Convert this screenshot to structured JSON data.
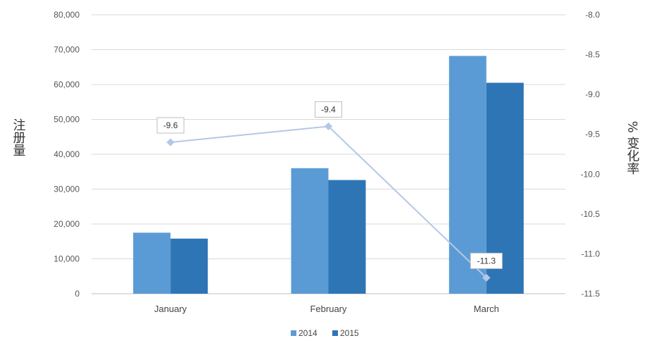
{
  "chart_data": {
    "type": "bar",
    "categories": [
      "January",
      "February",
      "March"
    ],
    "series": [
      {
        "name": "2014",
        "type": "bar",
        "axis": "left",
        "color": "#5b9bd5",
        "values": [
          17500,
          36000,
          68200
        ]
      },
      {
        "name": "2015",
        "type": "bar",
        "axis": "left",
        "color": "#2e75b6",
        "values": [
          15800,
          32600,
          60500
        ]
      },
      {
        "type": "line",
        "axis": "right",
        "color": "#b4c7e7",
        "values": [
          -9.6,
          -9.4,
          -11.3
        ],
        "data_labels": [
          "-9.6",
          "-9.4",
          "-11.3"
        ]
      }
    ],
    "ylabel": "注册量",
    "y2label": "% 变化率",
    "ylim": [
      0,
      80000
    ],
    "y2lim": [
      -11.5,
      -8.0
    ],
    "yticks": [
      "80,000",
      "70,000",
      "60,000",
      "50,000",
      "40,000",
      "30,000",
      "20,000",
      "10,000",
      "0"
    ],
    "y2ticks": [
      "-8.0",
      "-8.5",
      "-9.0",
      "-9.5",
      "-10.0",
      "-10.5",
      "-11.0",
      "-11.5"
    ],
    "grid": true,
    "legend_position": "bottom-center"
  }
}
